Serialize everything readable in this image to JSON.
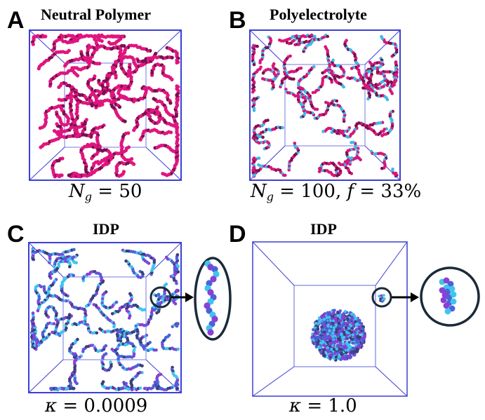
{
  "panels": [
    {
      "letter": "A",
      "title": "Neutral Polymer",
      "formula": {
        "var": "N",
        "sub": "g",
        "rest": " = 50"
      }
    },
    {
      "letter": "B",
      "title": "Polyelectrolyte",
      "formula": {
        "var": "N",
        "sub": "g",
        "rest": " = 100, ",
        "var2": "f",
        "rest2": " = 33%"
      }
    },
    {
      "letter": "C",
      "title": "IDP",
      "formula": {
        "var": "κ",
        "rest": " = 0.0009"
      }
    },
    {
      "letter": "D",
      "title": "IDP",
      "formula": {
        "var": "κ",
        "rest": " = 1.0"
      }
    }
  ],
  "colors": {
    "box_edge": "#3b3fd6",
    "neutral_bead": "#e0157f",
    "neutral_bead_dark": "#7a1050",
    "pe_bead_pink": "#d6177a",
    "pe_bead_cyan": "#3fb8e8",
    "idp_bead_blue": "#4b62d8",
    "idp_bead_cyan": "#3fc4ee",
    "idp_bead_purple": "#8a3fd6",
    "zoom_circle": "#1b2a3a",
    "arrow": "#000000"
  }
}
